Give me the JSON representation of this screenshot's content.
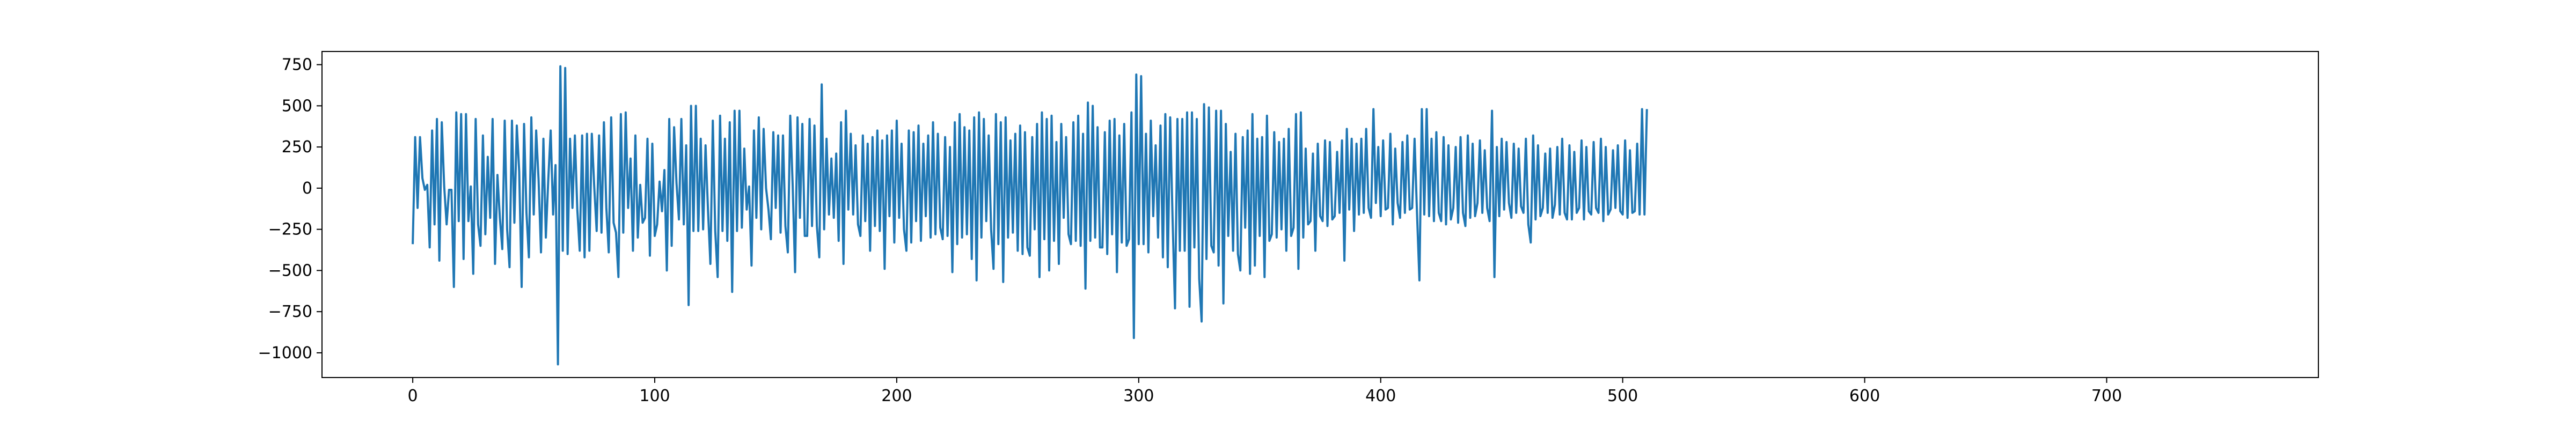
{
  "chart_data": {
    "type": "line",
    "title": "",
    "xlabel": "",
    "ylabel": "",
    "xlim": [
      -37.5,
      787.5
    ],
    "ylim": [
      -1150,
      830
    ],
    "x_ticks": [
      0,
      100,
      200,
      300,
      400,
      500,
      600,
      700
    ],
    "x_tick_labels": [
      "0",
      "100",
      "200",
      "300",
      "400",
      "500",
      "600",
      "700"
    ],
    "y_ticks": [
      -1000,
      -750,
      -500,
      -250,
      0,
      250,
      500,
      750
    ],
    "y_tick_labels": [
      "−1000",
      "−750",
      "−500",
      "−250",
      "0",
      "250",
      "500",
      "750"
    ],
    "grid": false,
    "legend": "none",
    "series": [
      {
        "color": "#1f77b4",
        "x_start": 0,
        "x_step": 1,
        "values": [
          -340,
          310,
          -120,
          310,
          60,
          -10,
          20,
          -360,
          350,
          -220,
          420,
          -440,
          400,
          10,
          -220,
          -10,
          -10,
          -600,
          460,
          -200,
          450,
          -430,
          450,
          -200,
          10,
          -520,
          420,
          -220,
          -350,
          320,
          -280,
          190,
          -180,
          420,
          -460,
          80,
          -180,
          -370,
          410,
          -250,
          -480,
          410,
          -210,
          380,
          100,
          -600,
          390,
          -150,
          -420,
          430,
          -160,
          350,
          50,
          -390,
          300,
          -300,
          50,
          350,
          -160,
          140,
          -1070,
          740,
          -380,
          730,
          -400,
          300,
          -120,
          320,
          -130,
          -380,
          320,
          -420,
          330,
          -380,
          330,
          10,
          -260,
          320,
          -270,
          400,
          -120,
          -390,
          430,
          -210,
          -270,
          -540,
          450,
          -270,
          460,
          -120,
          180,
          -380,
          320,
          -300,
          20,
          -210,
          -180,
          300,
          -410,
          270,
          -290,
          -220,
          40,
          -140,
          110,
          -500,
          420,
          -350,
          370,
          30,
          -190,
          420,
          -220,
          260,
          -710,
          500,
          -260,
          500,
          -260,
          300,
          -250,
          260,
          -130,
          -460,
          410,
          -260,
          -540,
          440,
          -260,
          300,
          -320,
          400,
          -630,
          470,
          -260,
          470,
          -240,
          240,
          -130,
          10,
          -470,
          350,
          -180,
          430,
          -250,
          360,
          0,
          -130,
          -310,
          340,
          -120,
          320,
          -270,
          320,
          -230,
          -390,
          440,
          20,
          -510,
          430,
          -180,
          390,
          -290,
          -290,
          420,
          -230,
          380,
          -230,
          -420,
          630,
          -250,
          300,
          -160,
          180,
          -180,
          210,
          -320,
          400,
          -460,
          470,
          -130,
          330,
          -160,
          260,
          -220,
          -290,
          320,
          -200,
          270,
          -380,
          310,
          -230,
          350,
          -260,
          290,
          -490,
          320,
          -170,
          350,
          -330,
          410,
          -180,
          270,
          -250,
          -380,
          350,
          -330,
          340,
          -200,
          380,
          -320,
          270,
          -170,
          320,
          -300,
          400,
          -280,
          330,
          -240,
          -310,
          310,
          -290,
          250,
          -510,
          400,
          -340,
          450,
          -300,
          370,
          -280,
          350,
          -430,
          430,
          -560,
          460,
          -300,
          420,
          -200,
          320,
          -250,
          -490,
          450,
          -340,
          400,
          -570,
          430,
          -300,
          290,
          -270,
          330,
          -380,
          380,
          -400,
          340,
          -360,
          -410,
          310,
          -250,
          390,
          -540,
          460,
          -310,
          420,
          -500,
          440,
          -320,
          280,
          -460,
          390,
          -180,
          310,
          -280,
          -340,
          400,
          -320,
          440,
          -350,
          330,
          -610,
          520,
          -320,
          500,
          -300,
          370,
          -360,
          -360,
          340,
          -400,
          410,
          -280,
          420,
          -510,
          320,
          -330,
          390,
          -350,
          -310,
          460,
          -910,
          690,
          -340,
          680,
          -340,
          330,
          -390,
          410,
          -170,
          260,
          -300,
          380,
          -420,
          450,
          -480,
          430,
          -190,
          -730,
          420,
          -380,
          420,
          -380,
          460,
          -720,
          460,
          -360,
          420,
          -550,
          -810,
          510,
          -430,
          490,
          -350,
          -390,
          470,
          -470,
          470,
          -700,
          390,
          -290,
          220,
          -380,
          330,
          -400,
          -500,
          310,
          -240,
          350,
          -520,
          450,
          -470,
          300,
          -290,
          310,
          -540,
          440,
          -320,
          -280,
          340,
          -300,
          280,
          -250,
          300,
          -380,
          360,
          -290,
          -240,
          450,
          -490,
          460,
          -300,
          240,
          -220,
          -200,
          210,
          -380,
          270,
          -170,
          -200,
          290,
          -230,
          280,
          -190,
          -170,
          220,
          -150,
          290,
          -440,
          360,
          -130,
          300,
          -260,
          270,
          -160,
          300,
          -150,
          360,
          -120,
          -180,
          480,
          -90,
          250,
          -170,
          290,
          -130,
          -120,
          330,
          -220,
          240,
          -90,
          -180,
          280,
          -150,
          320,
          -130,
          -120,
          300,
          -150,
          -560,
          480,
          -160,
          480,
          -170,
          300,
          -200,
          340,
          -150,
          -200,
          310,
          -220,
          260,
          -190,
          -120,
          250,
          -210,
          310,
          -150,
          -230,
          320,
          -180,
          270,
          -170,
          -90,
          290,
          -150,
          230,
          -120,
          -200,
          470,
          -540,
          250,
          -170,
          300,
          -130,
          280,
          -90,
          -180,
          270,
          -150,
          240,
          -110,
          -150,
          300,
          -220,
          -330,
          320,
          -190,
          260,
          -170,
          -120,
          210,
          -150,
          240,
          -180,
          -100,
          250,
          -160,
          300,
          -150,
          -190,
          260,
          -190,
          220,
          -150,
          -120,
          290,
          -190,
          250,
          -140,
          -160,
          280,
          -120,
          -150,
          300,
          -200,
          250,
          -160,
          -130,
          230,
          -120,
          260,
          -140,
          -160,
          290,
          -180,
          230,
          -150,
          -140,
          270,
          -160,
          480,
          -160,
          480
        ]
      }
    ]
  }
}
